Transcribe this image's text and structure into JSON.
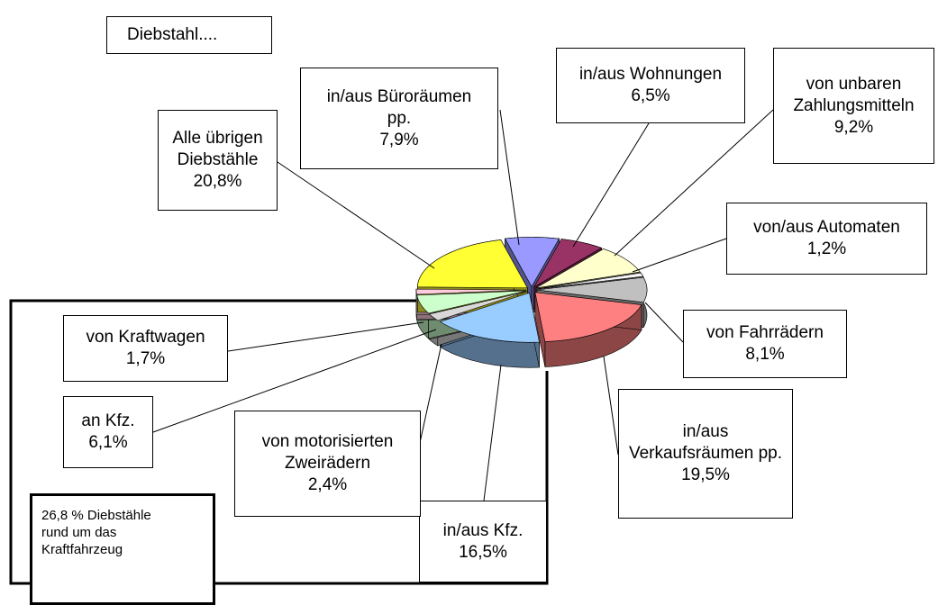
{
  "chart_data": {
    "type": "pie3d",
    "title": "Diebstahl....",
    "annotation": "26,8 % Diebstähle rund um das Kraftfahrzeug",
    "categories": [
      "in/aus Büroräumen pp.",
      "in/aus Wohnungen",
      "von unbaren Zahlungsmitteln",
      "von/aus Automaten",
      "von Fahrrädern",
      "in/aus Verkaufsräumen pp.",
      "in/aus Kfz.",
      "von motorisierten Zweirädern",
      "an Kfz.",
      "von Kraftwagen",
      "Alle übrigen Diebstähle"
    ],
    "values": [
      7.9,
      6.5,
      9.2,
      1.2,
      8.1,
      19.5,
      16.5,
      2.4,
      6.1,
      1.7,
      20.8
    ],
    "value_labels": [
      "7,9%",
      "6,5%",
      "9,2%",
      "1,2%",
      "8,1%",
      "19,5%",
      "16,5%",
      "2,4%",
      "6,1%",
      "1,7%",
      "20,8%"
    ],
    "colors": [
      "#9999ff",
      "#993366",
      "#ffffcc",
      "#f4f4f4",
      "#c0c0c0",
      "#ff8080",
      "#99ccff",
      "#d8d8d8",
      "#ccffcc",
      "#ffccdd",
      "#ffff33"
    ]
  }
}
